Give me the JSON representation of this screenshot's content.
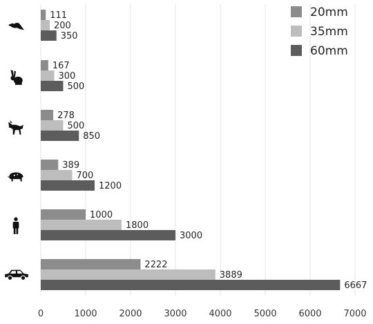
{
  "chart_data": {
    "type": "bar",
    "orientation": "horizontal",
    "categories": [
      "bird-icon",
      "rabbit-icon",
      "wolf-icon",
      "boar-icon",
      "person-icon",
      "car-icon"
    ],
    "series": [
      {
        "name": "20mm",
        "color": "#8c8c8c",
        "values": [
          111,
          167,
          278,
          389,
          1000,
          2222
        ]
      },
      {
        "name": "35mm",
        "color": "#bdbdbd",
        "values": [
          200,
          300,
          500,
          700,
          1800,
          3889
        ]
      },
      {
        "name": "60mm",
        "color": "#5c5c5c",
        "values": [
          350,
          500,
          850,
          1200,
          3000,
          6667
        ]
      }
    ],
    "xticks": [
      "0",
      "1000",
      "2000",
      "3000",
      "4000",
      "5000",
      "6000",
      "7000"
    ],
    "xlim": [
      0,
      7000
    ],
    "grid": "vertical",
    "legend": "top-right",
    "title": "",
    "xlabel": "",
    "ylabel": ""
  }
}
